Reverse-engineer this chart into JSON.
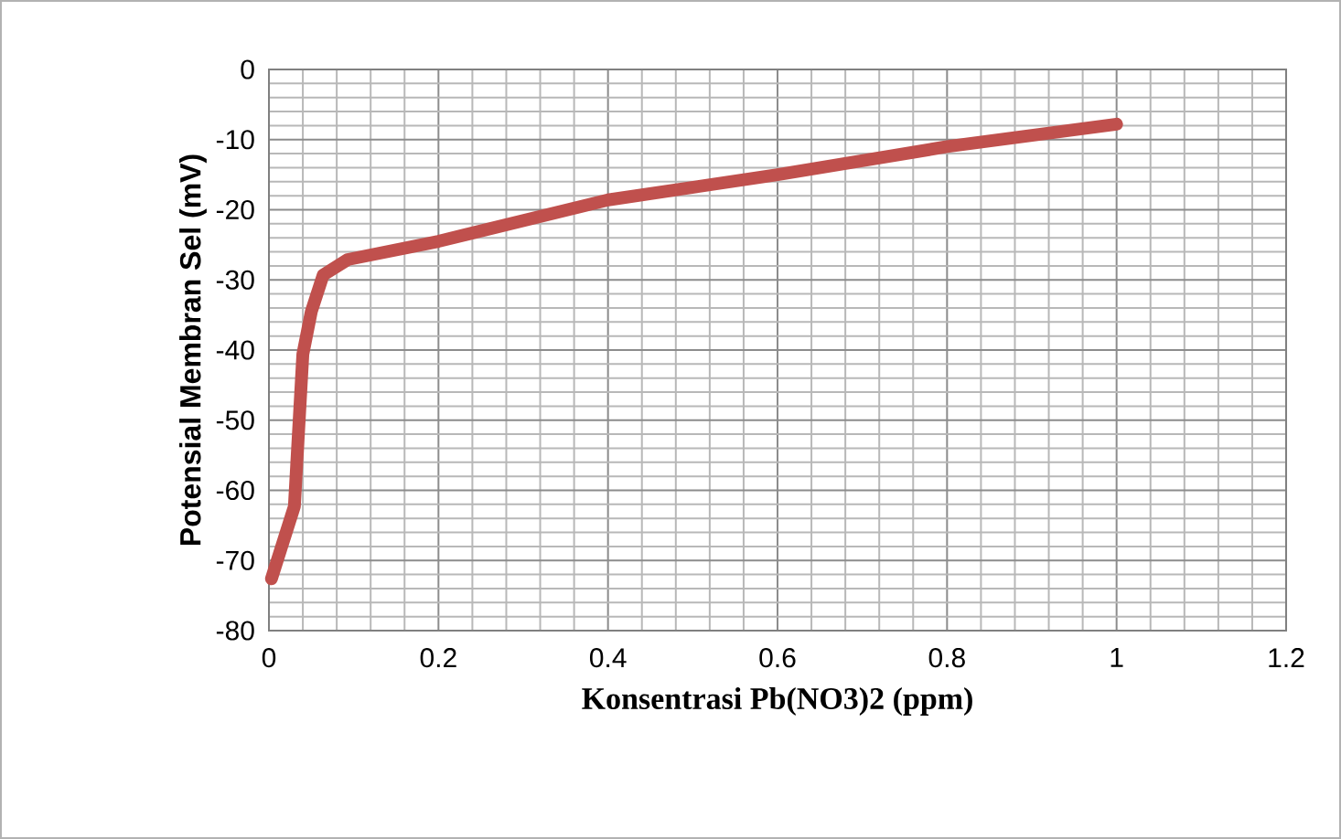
{
  "chart_data": {
    "type": "line",
    "xlabel": "Konsentrasi Pb(NO3)2 (ppm)",
    "ylabel": "Potensial Membran Sel (mV)",
    "xlim": [
      0,
      1.2
    ],
    "ylim": [
      -80,
      0
    ],
    "xticks": [
      0,
      0.2,
      0.4,
      0.6,
      0.8,
      1,
      1.2
    ],
    "yticks": [
      0,
      -10,
      -20,
      -30,
      -40,
      -50,
      -60,
      -70,
      -80
    ],
    "grid": true,
    "marker": "none",
    "line_style": "solid",
    "series": [
      {
        "color": "#c0504d",
        "x": [
          0.003,
          0.03,
          0.04,
          0.05,
          0.064,
          0.093,
          0.2,
          0.4,
          0.6,
          0.8,
          1
        ],
        "values": [
          -72.6,
          -62.3,
          -40.6,
          -34.5,
          -29.3,
          -27.1,
          -24.5,
          -18.6,
          -15.0,
          -11.0,
          -7.8
        ]
      }
    ]
  }
}
